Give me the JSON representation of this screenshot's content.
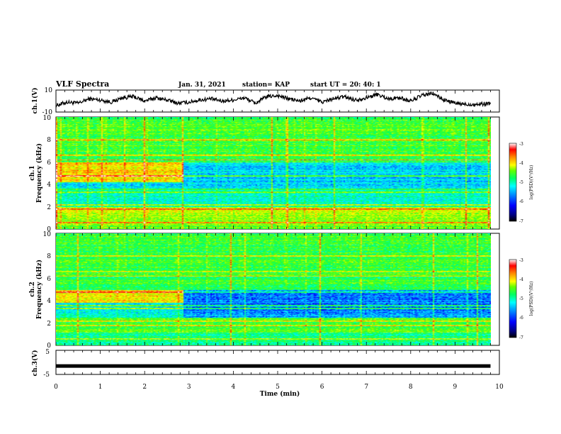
{
  "header": {
    "title": "VLF Spectra",
    "date": "Jan. 31, 2021",
    "station": "station= KAP",
    "start": "start  UT =   20: 40: 1"
  },
  "chart_data": [
    {
      "type": "line",
      "panel": "ch1-waveform",
      "ylabel": "ch.1(V)",
      "ylim": [
        -10,
        10
      ],
      "yticks": [
        "10",
        "-10"
      ],
      "x": [
        0,
        0.25,
        0.5,
        0.75,
        1.0,
        1.25,
        1.5,
        1.75,
        2.0,
        2.25,
        2.5,
        2.75,
        3.0,
        3.25,
        3.5,
        3.75,
        4.0,
        4.25,
        4.5,
        4.75,
        5.0,
        5.25,
        5.5,
        5.75,
        6.0,
        6.25,
        6.5,
        6.75,
        7.0,
        7.25,
        7.5,
        7.75,
        8.0,
        8.25,
        8.5,
        8.75,
        9.0,
        9.25,
        9.5,
        9.8
      ],
      "y": [
        -4,
        -1,
        -2,
        2,
        1,
        -1,
        3,
        4,
        0,
        3,
        1,
        -2,
        -1,
        1,
        2,
        0,
        1,
        3,
        -2,
        4,
        5,
        2,
        0,
        3,
        -1,
        2,
        4,
        1,
        3,
        6,
        2,
        3,
        0,
        5,
        7,
        1,
        -2,
        -3,
        -3,
        -2
      ]
    },
    {
      "type": "heatmap",
      "panel": "ch1-spectrogram",
      "ylabel": "ch.1\nFrequency (kHz)",
      "ylim": [
        0,
        10
      ],
      "yticks": [
        "0",
        "2",
        "4",
        "6",
        "8",
        "10"
      ],
      "colorbar": {
        "label": "log(PSD)(V²/Hz)",
        "range": [
          -7,
          -3
        ],
        "ticks": [
          "-3",
          "-4",
          "-5",
          "-6",
          "-7"
        ]
      }
    },
    {
      "type": "heatmap",
      "panel": "ch2-spectrogram",
      "ylabel": "ch.2\nFrequency (kHz)",
      "ylim": [
        0,
        10
      ],
      "yticks": [
        "0",
        "2",
        "4",
        "6",
        "8",
        "10"
      ],
      "colorbar": {
        "label": "log(PSD)(V²/Hz)",
        "range": [
          -7,
          -3
        ],
        "ticks": [
          "-3",
          "-4",
          "-5",
          "-6",
          "-7"
        ]
      }
    },
    {
      "type": "line",
      "panel": "ch3-waveform",
      "ylabel": "ch.3(V)",
      "ylim": [
        -5,
        5
      ],
      "yticks": [
        "5",
        "-5"
      ],
      "x": [
        0,
        9.8
      ],
      "y": [
        -1.5,
        -1.5
      ]
    }
  ],
  "xaxis": {
    "label": "Time (min)",
    "range": [
      0,
      10
    ],
    "ticks": [
      "0",
      "1",
      "2",
      "3",
      "4",
      "5",
      "6",
      "7",
      "8",
      "9",
      "10"
    ]
  },
  "colors": {
    "colormap": [
      "#00007f",
      "#0000ff",
      "#0096ff",
      "#00ffff",
      "#00ff64",
      "#64ff00",
      "#ffff00",
      "#ff8c00",
      "#ff0000",
      "#ffffff"
    ]
  }
}
